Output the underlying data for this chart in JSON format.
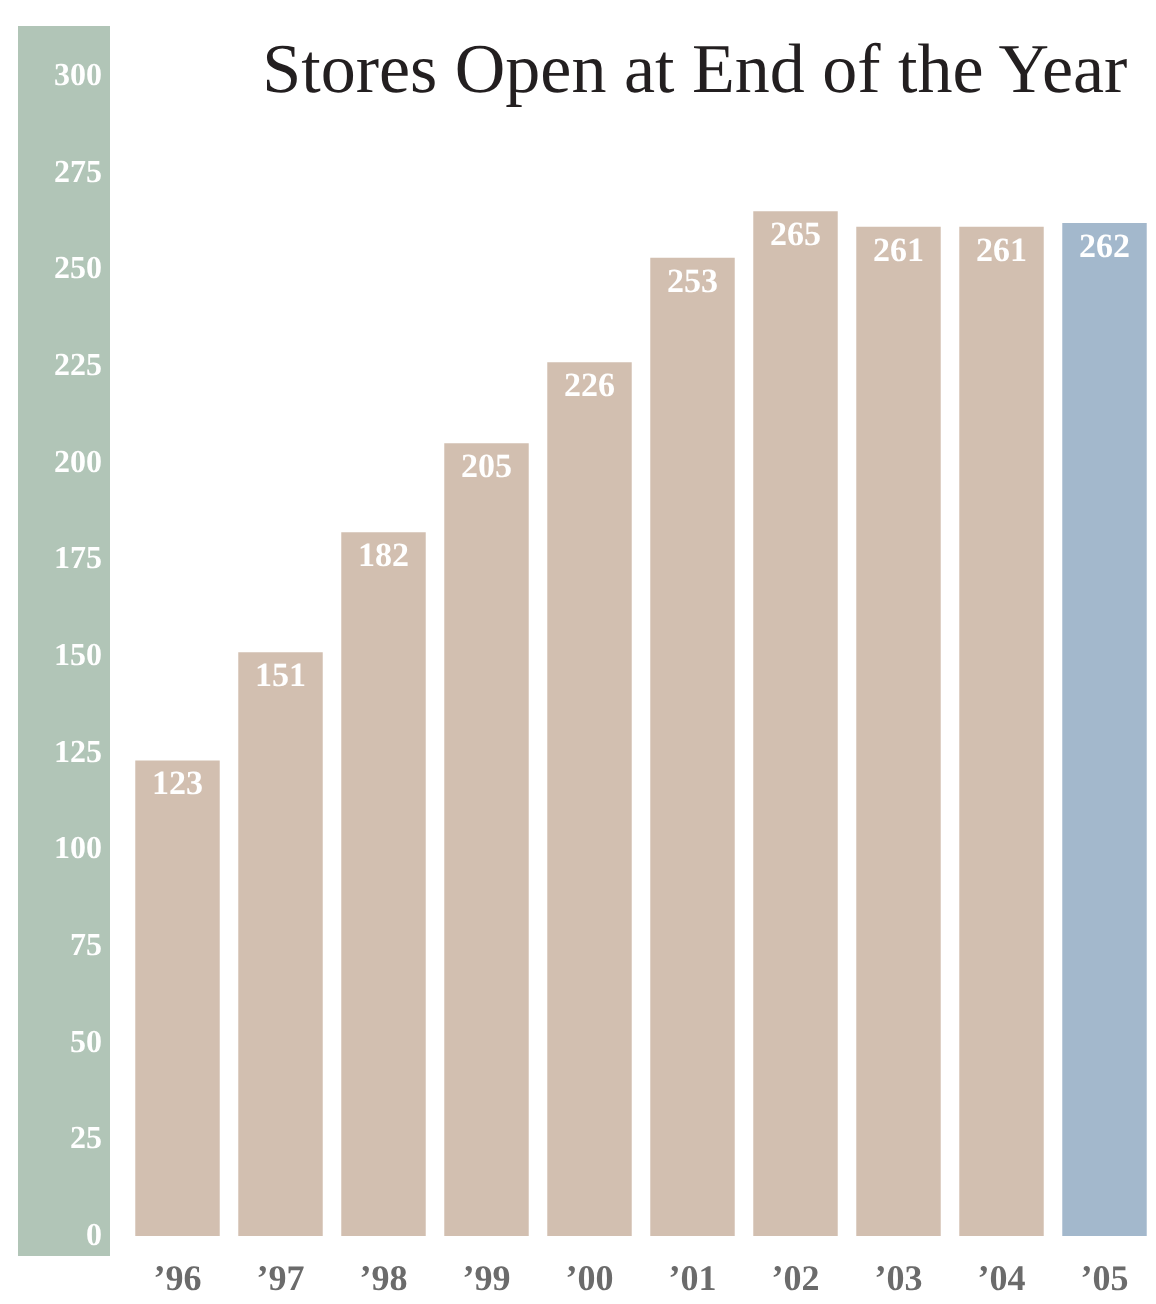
{
  "chart_data": {
    "type": "bar",
    "title": "Stores Open at End of the Year",
    "categories": [
      "’96",
      "’97",
      "’98",
      "’99",
      "’00",
      "’01",
      "’02",
      "’03",
      "’04",
      "’05"
    ],
    "values": [
      123,
      151,
      182,
      205,
      226,
      253,
      265,
      261,
      261,
      262
    ],
    "colors": [
      "#d2bfb0",
      "#d2bfb0",
      "#d2bfb0",
      "#d2bfb0",
      "#d2bfb0",
      "#d2bfb0",
      "#d2bfb0",
      "#d2bfb0",
      "#d2bfb0",
      "#a3b8cc"
    ],
    "ylim": [
      0,
      300
    ],
    "yticks": [
      0,
      25,
      50,
      75,
      100,
      125,
      150,
      175,
      200,
      225,
      250,
      275,
      300
    ],
    "data_labels": true
  }
}
